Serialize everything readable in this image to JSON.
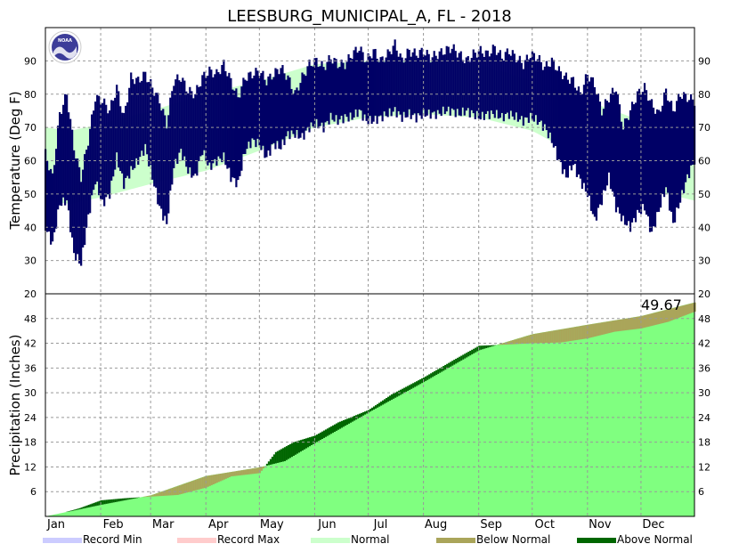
{
  "chart_data": {
    "title": "LEESBURG_MUNICIPAL_A, FL - 2018",
    "months": [
      "Jan",
      "Feb",
      "Mar",
      "Apr",
      "May",
      "Jun",
      "Jul",
      "Aug",
      "Sep",
      "Oct",
      "Nov",
      "Dec"
    ],
    "colors": {
      "record_min": "#ccccff",
      "record_max": "#ffcccc",
      "normal_temp": "#ccffcc",
      "observed_temp": "#000066",
      "normal_precip": "#80ff80",
      "below_normal": "#aaa55a",
      "above_normal": "#006600"
    },
    "temperature": {
      "type": "area",
      "ylabel": "Temperature (Deg F)",
      "ylim": [
        20,
        100
      ],
      "ticks": [
        30,
        40,
        50,
        60,
        70,
        80,
        90
      ],
      "normal_high_x": [
        1,
        15,
        32,
        60,
        91,
        121,
        152,
        182,
        213,
        244,
        274,
        305,
        335,
        365
      ],
      "normal_high_y": [
        70,
        69,
        71,
        75,
        80,
        84,
        89,
        90,
        90,
        89,
        84,
        78,
        72,
        70
      ],
      "normal_low_x": [
        1,
        15,
        32,
        60,
        91,
        121,
        152,
        182,
        213,
        244,
        274,
        305,
        335,
        365
      ],
      "normal_low_y": [
        48,
        47,
        49,
        53,
        57,
        63,
        70,
        73,
        74,
        73,
        69,
        60,
        52,
        48
      ],
      "observed_high_x": [
        1,
        5,
        9,
        13,
        17,
        21,
        25,
        29,
        33,
        37,
        41,
        45,
        49,
        53,
        57,
        61,
        65,
        69,
        73,
        77,
        81,
        85,
        89,
        93,
        97,
        101,
        105,
        109,
        113,
        117,
        121,
        125,
        129,
        133,
        137,
        141,
        145,
        149,
        153,
        157,
        161,
        165,
        169,
        173,
        177,
        181,
        185,
        189,
        193,
        197,
        201,
        205,
        209,
        213,
        217,
        221,
        225,
        229,
        233,
        237,
        241,
        245,
        249,
        253,
        257,
        261,
        265,
        269,
        273,
        277,
        281,
        285,
        289,
        293,
        297,
        301,
        305,
        309,
        313,
        317,
        321,
        325,
        329,
        333,
        337,
        341,
        345,
        349,
        353,
        357,
        361,
        365
      ],
      "observed_high_y": [
        62,
        55,
        74,
        80,
        64,
        55,
        66,
        79,
        78,
        75,
        82,
        73,
        85,
        84,
        86,
        82,
        78,
        71,
        84,
        85,
        81,
        80,
        85,
        87,
        86,
        89,
        84,
        79,
        85,
        86,
        87,
        84,
        86,
        88,
        85,
        80,
        85,
        89,
        90,
        88,
        91,
        89,
        89,
        92,
        94,
        90,
        93,
        90,
        92,
        95,
        90,
        93,
        92,
        93,
        91,
        92,
        93,
        94,
        92,
        90,
        92,
        93,
        92,
        94,
        91,
        93,
        91,
        89,
        92,
        91,
        88,
        90,
        87,
        85,
        84,
        80,
        86,
        83,
        75,
        79,
        82,
        70,
        75,
        80,
        82,
        77,
        74,
        81,
        75,
        80,
        79,
        78
      ],
      "observed_low_x": [
        1,
        5,
        9,
        13,
        17,
        21,
        25,
        29,
        33,
        37,
        41,
        45,
        49,
        53,
        57,
        61,
        65,
        69,
        73,
        77,
        81,
        85,
        89,
        93,
        97,
        101,
        105,
        109,
        113,
        117,
        121,
        125,
        129,
        133,
        137,
        141,
        145,
        149,
        153,
        157,
        161,
        165,
        169,
        173,
        177,
        181,
        185,
        189,
        193,
        197,
        201,
        205,
        209,
        213,
        217,
        221,
        225,
        229,
        233,
        237,
        241,
        245,
        249,
        253,
        257,
        261,
        265,
        269,
        273,
        277,
        281,
        285,
        289,
        293,
        297,
        301,
        305,
        309,
        313,
        317,
        321,
        325,
        329,
        333,
        337,
        341,
        345,
        349,
        353,
        357,
        361,
        365
      ],
      "observed_low_y": [
        40,
        35,
        47,
        48,
        32,
        29,
        43,
        54,
        47,
        50,
        61,
        53,
        57,
        60,
        64,
        55,
        46,
        41,
        58,
        63,
        57,
        55,
        63,
        58,
        60,
        61,
        55,
        53,
        63,
        66,
        65,
        61,
        65,
        64,
        68,
        68,
        67,
        70,
        71,
        70,
        73,
        72,
        73,
        73,
        75,
        72,
        72,
        73,
        74,
        75,
        73,
        74,
        73,
        74,
        74,
        74,
        75,
        75,
        74,
        75,
        74,
        73,
        74,
        74,
        73,
        74,
        73,
        72,
        73,
        72,
        70,
        66,
        60,
        55,
        59,
        54,
        50,
        42,
        48,
        55,
        46,
        42,
        40,
        44,
        46,
        38,
        45,
        52,
        41,
        48,
        55,
        60
      ]
    },
    "precipitation": {
      "type": "area",
      "ylabel": "Precipitation (Inches)",
      "ylim": [
        0,
        54
      ],
      "ticks": [
        6,
        12,
        18,
        24,
        30,
        36,
        42,
        48
      ],
      "total_label": "49.67",
      "normal_x": [
        1,
        32,
        60,
        91,
        121,
        135,
        152,
        182,
        213,
        244,
        274,
        305,
        335,
        365
      ],
      "normal_y": [
        0,
        2.8,
        5.1,
        9.8,
        11.9,
        13.4,
        17.8,
        25.2,
        32.6,
        40.3,
        44.2,
        46.5,
        48.6,
        51.9
      ],
      "observed_x": [
        1,
        10,
        20,
        32,
        45,
        60,
        75,
        91,
        105,
        121,
        130,
        140,
        152,
        165,
        182,
        195,
        213,
        230,
        244,
        260,
        274,
        290,
        305,
        320,
        335,
        350,
        365
      ],
      "observed_y": [
        0,
        0.8,
        2.0,
        3.9,
        4.4,
        4.8,
        5.2,
        7.0,
        9.7,
        10.5,
        15.6,
        18.0,
        19.6,
        22.8,
        25.8,
        29.6,
        33.7,
        38.0,
        41.4,
        41.7,
        42.0,
        42.2,
        43.2,
        44.8,
        45.6,
        47.2,
        49.67
      ]
    },
    "legend": [
      {
        "label": "Record Min",
        "color": "#ccccff"
      },
      {
        "label": "Record Max",
        "color": "#ffcccc"
      },
      {
        "label": "Normal",
        "color": "#ccffcc"
      },
      {
        "label": "Below Normal",
        "color": "#aaa55a"
      },
      {
        "label": "Above Normal",
        "color": "#006600"
      }
    ]
  }
}
